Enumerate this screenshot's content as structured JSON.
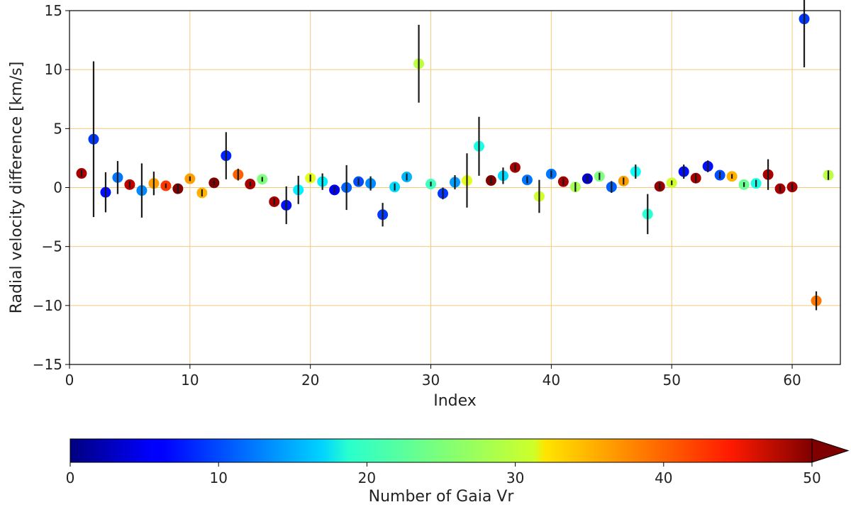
{
  "chart_data": {
    "type": "scatter",
    "xlabel": "Index",
    "ylabel": "Radial velocity difference [km/s]",
    "xlim": [
      0,
      64
    ],
    "ylim": [
      -15,
      15
    ],
    "x_ticks": [
      0,
      10,
      20,
      30,
      40,
      50,
      60
    ],
    "y_ticks": [
      -15,
      -10,
      -5,
      0,
      5,
      10,
      15
    ],
    "x_tick_labels": [
      "0",
      "10",
      "20",
      "30",
      "40",
      "50",
      "60"
    ],
    "y_tick_labels": [
      "−15",
      "−10",
      "−5",
      "0",
      "5",
      "10",
      "15"
    ],
    "grid": true,
    "grid_color": "#f5c97a",
    "errorbar_color": "#1a1a1a",
    "colorbar": {
      "label": "Number of Gaia Vr",
      "colormap": "jet",
      "range": [
        0,
        50
      ],
      "extend": "max",
      "ticks": [
        0,
        10,
        20,
        30,
        40,
        50
      ],
      "tick_labels": [
        "0",
        "10",
        "20",
        "30",
        "40",
        "50"
      ]
    },
    "points": [
      {
        "x": 1,
        "y": 1.2,
        "err": 0.3,
        "n": 48
      },
      {
        "x": 2,
        "y": 4.1,
        "err": 6.6,
        "n": 9
      },
      {
        "x": 3,
        "y": -0.4,
        "err": 1.7,
        "n": 7
      },
      {
        "x": 4,
        "y": 0.85,
        "err": 1.4,
        "n": 12
      },
      {
        "x": 5,
        "y": 0.25,
        "err": 0.3,
        "n": 47
      },
      {
        "x": 6,
        "y": -0.25,
        "err": 2.3,
        "n": 13
      },
      {
        "x": 7,
        "y": 0.35,
        "err": 1.0,
        "n": 36
      },
      {
        "x": 8,
        "y": 0.15,
        "err": 0.2,
        "n": 41
      },
      {
        "x": 9,
        "y": -0.1,
        "err": 0.4,
        "n": 50
      },
      {
        "x": 10,
        "y": 0.75,
        "err": 0.2,
        "n": 36
      },
      {
        "x": 11,
        "y": -0.45,
        "err": 0.3,
        "n": 35
      },
      {
        "x": 12,
        "y": 0.4,
        "err": 0.2,
        "n": 50
      },
      {
        "x": 13,
        "y": 2.7,
        "err": 2.0,
        "n": 8
      },
      {
        "x": 14,
        "y": 1.1,
        "err": 0.5,
        "n": 39
      },
      {
        "x": 15,
        "y": 0.3,
        "err": 0.2,
        "n": 48
      },
      {
        "x": 16,
        "y": 0.7,
        "err": 0.2,
        "n": 25
      },
      {
        "x": 17,
        "y": -1.2,
        "err": 0.3,
        "n": 48
      },
      {
        "x": 18,
        "y": -1.5,
        "err": 1.6,
        "n": 7
      },
      {
        "x": 19,
        "y": -0.2,
        "err": 1.2,
        "n": 18
      },
      {
        "x": 20,
        "y": 0.8,
        "err": 0.3,
        "n": 30
      },
      {
        "x": 21,
        "y": 0.5,
        "err": 0.7,
        "n": 18
      },
      {
        "x": 22,
        "y": -0.2,
        "err": 0.3,
        "n": 6
      },
      {
        "x": 23,
        "y": 0.0,
        "err": 1.9,
        "n": 11
      },
      {
        "x": 24,
        "y": 0.5,
        "err": 0.3,
        "n": 10
      },
      {
        "x": 25,
        "y": 0.35,
        "err": 0.6,
        "n": 13
      },
      {
        "x": 26,
        "y": -2.3,
        "err": 1.0,
        "n": 9
      },
      {
        "x": 27,
        "y": 0.05,
        "err": 0.3,
        "n": 17
      },
      {
        "x": 28,
        "y": 0.9,
        "err": 0.3,
        "n": 15
      },
      {
        "x": 29,
        "y": 10.5,
        "err": 3.3,
        "n": 28
      },
      {
        "x": 30,
        "y": 0.3,
        "err": 0.2,
        "n": 22
      },
      {
        "x": 31,
        "y": -0.5,
        "err": 0.5,
        "n": 9
      },
      {
        "x": 32,
        "y": 0.45,
        "err": 0.6,
        "n": 14
      },
      {
        "x": 33,
        "y": 0.6,
        "err": 2.3,
        "n": 30
      },
      {
        "x": 34,
        "y": 3.5,
        "err": 2.5,
        "n": 20
      },
      {
        "x": 35,
        "y": 0.6,
        "err": 0.3,
        "n": 50
      },
      {
        "x": 36,
        "y": 1.0,
        "err": 0.7,
        "n": 17
      },
      {
        "x": 37,
        "y": 1.7,
        "err": 0.3,
        "n": 48
      },
      {
        "x": 38,
        "y": 0.65,
        "err": 0.3,
        "n": 12
      },
      {
        "x": 39,
        "y": -0.75,
        "err": 1.4,
        "n": 29
      },
      {
        "x": 40,
        "y": 1.15,
        "err": 0.3,
        "n": 12
      },
      {
        "x": 41,
        "y": 0.5,
        "err": 0.3,
        "n": 48
      },
      {
        "x": 42,
        "y": 0.05,
        "err": 0.4,
        "n": 27
      },
      {
        "x": 43,
        "y": 0.75,
        "err": 0.3,
        "n": 4
      },
      {
        "x": 44,
        "y": 0.95,
        "err": 0.3,
        "n": 25
      },
      {
        "x": 45,
        "y": 0.05,
        "err": 0.5,
        "n": 11
      },
      {
        "x": 46,
        "y": 0.55,
        "err": 0.3,
        "n": 36
      },
      {
        "x": 47,
        "y": 1.35,
        "err": 0.6,
        "n": 19
      },
      {
        "x": 48,
        "y": -2.25,
        "err": 1.7,
        "n": 21
      },
      {
        "x": 49,
        "y": 0.1,
        "err": 0.3,
        "n": 49
      },
      {
        "x": 50,
        "y": 0.4,
        "err": 0.2,
        "n": 29
      },
      {
        "x": 51,
        "y": 1.35,
        "err": 0.6,
        "n": 7
      },
      {
        "x": 52,
        "y": 0.8,
        "err": 0.4,
        "n": 48
      },
      {
        "x": 53,
        "y": 1.8,
        "err": 0.5,
        "n": 7
      },
      {
        "x": 54,
        "y": 1.05,
        "err": 0.3,
        "n": 10
      },
      {
        "x": 55,
        "y": 0.95,
        "err": 0.2,
        "n": 35
      },
      {
        "x": 56,
        "y": 0.25,
        "err": 0.2,
        "n": 24
      },
      {
        "x": 57,
        "y": 0.35,
        "err": 0.3,
        "n": 20
      },
      {
        "x": 58,
        "y": 1.1,
        "err": 1.3,
        "n": 48
      },
      {
        "x": 59,
        "y": -0.1,
        "err": 0.3,
        "n": 48
      },
      {
        "x": 60,
        "y": 0.05,
        "err": 0.3,
        "n": 48
      },
      {
        "x": 61,
        "y": 14.3,
        "err": 4.1,
        "n": 9
      },
      {
        "x": 62,
        "y": -9.6,
        "err": 0.8,
        "n": 38
      },
      {
        "x": 63,
        "y": 1.05,
        "err": 0.4,
        "n": 28
      }
    ]
  }
}
